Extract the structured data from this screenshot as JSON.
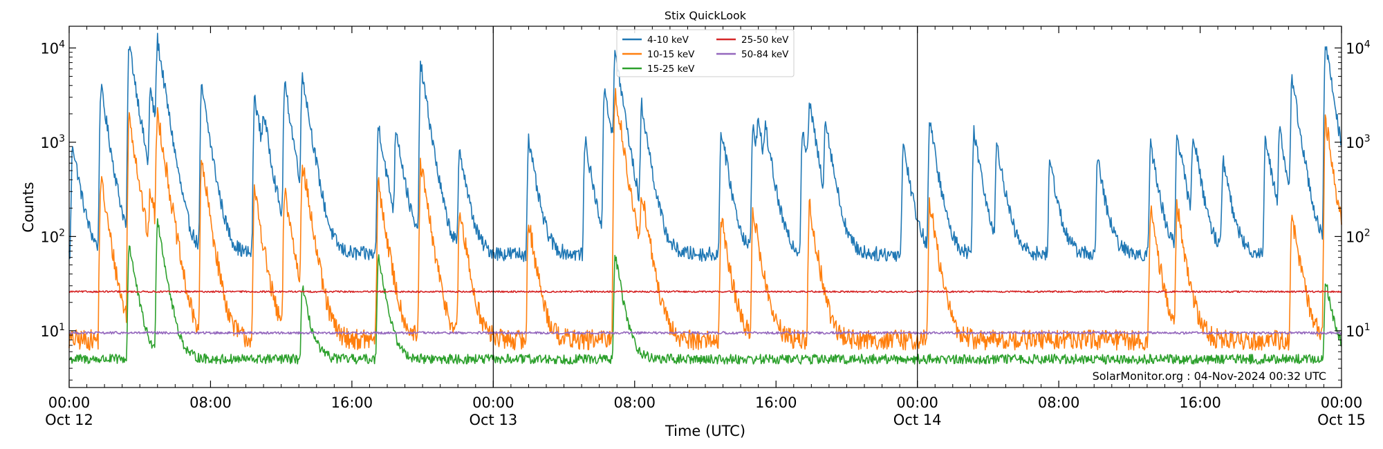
{
  "chart_data": {
    "type": "line",
    "title": "Stix QuickLook",
    "xlabel": "Time (UTC)",
    "ylabel": "Counts",
    "yscale": "log",
    "ylim": [
      2.5,
      17000
    ],
    "x_range_hours": [
      0,
      72
    ],
    "x_ticks": [
      {
        "hour": 0,
        "label": "00:00",
        "date": "Oct 12"
      },
      {
        "hour": 8,
        "label": "08:00",
        "date": ""
      },
      {
        "hour": 16,
        "label": "16:00",
        "date": ""
      },
      {
        "hour": 24,
        "label": "00:00",
        "date": "Oct 13"
      },
      {
        "hour": 32,
        "label": "08:00",
        "date": ""
      },
      {
        "hour": 40,
        "label": "16:00",
        "date": ""
      },
      {
        "hour": 48,
        "label": "00:00",
        "date": "Oct 14"
      },
      {
        "hour": 56,
        "label": "08:00",
        "date": ""
      },
      {
        "hour": 64,
        "label": "16:00",
        "date": ""
      },
      {
        "hour": 72,
        "label": "00:00",
        "date": "Oct 15"
      }
    ],
    "y_ticks": [
      {
        "value": 10,
        "base": "10",
        "exp": "1"
      },
      {
        "value": 100,
        "base": "10",
        "exp": "2"
      },
      {
        "value": 1000,
        "base": "10",
        "exp": "3"
      },
      {
        "value": 10000,
        "base": "10",
        "exp": "4"
      }
    ],
    "day_boundaries_hours": [
      24,
      48
    ],
    "legend_position": "top-center",
    "grid": false,
    "annotation": "SolarMonitor.org : 04-Nov-2024 00:32 UTC",
    "series": [
      {
        "name": "4-10 keV",
        "color": "#1f77b4",
        "baseline": 65,
        "noise": 0.18,
        "peaks": [
          [
            0.2,
            900
          ],
          [
            1.8,
            3800
          ],
          [
            3.4,
            11000
          ],
          [
            4.6,
            3200
          ],
          [
            5.0,
            11000
          ],
          [
            7.5,
            3800
          ],
          [
            10.5,
            3000
          ],
          [
            11.0,
            1300
          ],
          [
            12.2,
            4000
          ],
          [
            13.2,
            5000
          ],
          [
            17.5,
            1500
          ],
          [
            18.5,
            1300
          ],
          [
            19.9,
            6500
          ],
          [
            22.1,
            800
          ],
          [
            26.0,
            1000
          ],
          [
            29.2,
            1000
          ],
          [
            30.3,
            3800
          ],
          [
            30.9,
            8500
          ],
          [
            32.4,
            2300
          ],
          [
            36.9,
            1300
          ],
          [
            38.7,
            1500
          ],
          [
            39.0,
            1000
          ],
          [
            39.4,
            900
          ],
          [
            41.5,
            1300
          ],
          [
            41.9,
            2200
          ],
          [
            42.8,
            1500
          ],
          [
            47.2,
            900
          ],
          [
            48.7,
            1600
          ],
          [
            51.2,
            1300
          ],
          [
            52.5,
            900
          ],
          [
            55.5,
            600
          ],
          [
            58.2,
            600
          ],
          [
            61.2,
            900
          ],
          [
            62.7,
            1200
          ],
          [
            63.6,
            1100
          ],
          [
            65.3,
            600
          ],
          [
            67.7,
            1100
          ],
          [
            68.5,
            1200
          ],
          [
            69.2,
            4500
          ],
          [
            71.1,
            11000
          ]
        ]
      },
      {
        "name": "10-15 keV",
        "color": "#ff7f0e",
        "baseline": 8,
        "noise": 0.25,
        "peaks": [
          [
            1.8,
            400
          ],
          [
            3.4,
            1900
          ],
          [
            4.6,
            250
          ],
          [
            5.0,
            2000
          ],
          [
            7.5,
            600
          ],
          [
            10.5,
            300
          ],
          [
            12.2,
            300
          ],
          [
            13.2,
            600
          ],
          [
            17.5,
            350
          ],
          [
            19.9,
            580
          ],
          [
            22.1,
            180
          ],
          [
            26.0,
            140
          ],
          [
            30.9,
            3500
          ],
          [
            32.4,
            250
          ],
          [
            36.9,
            150
          ],
          [
            38.7,
            180
          ],
          [
            41.9,
            200
          ],
          [
            48.7,
            220
          ],
          [
            61.2,
            180
          ],
          [
            62.7,
            200
          ],
          [
            69.2,
            160
          ],
          [
            71.1,
            1700
          ]
        ]
      },
      {
        "name": "15-25 keV",
        "color": "#2ca02c",
        "baseline": 5,
        "noise": 0.12,
        "peaks": [
          [
            3.4,
            80
          ],
          [
            5.0,
            150
          ],
          [
            13.2,
            25
          ],
          [
            17.5,
            60
          ],
          [
            30.9,
            60
          ],
          [
            71.1,
            30
          ]
        ]
      },
      {
        "name": "25-50 keV",
        "color": "#d62728",
        "baseline": 26,
        "noise": 0.02,
        "peaks": []
      },
      {
        "name": "50-84 keV",
        "color": "#9467bd",
        "baseline": 9.5,
        "noise": 0.03,
        "peaks": []
      }
    ]
  }
}
